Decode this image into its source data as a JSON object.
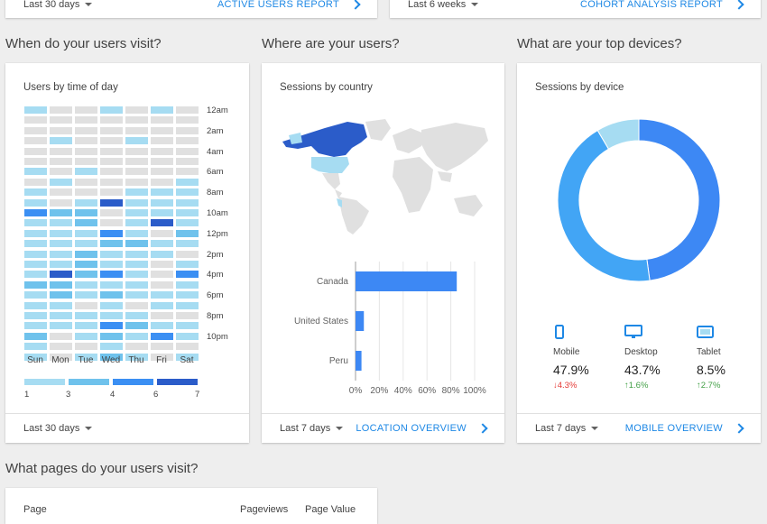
{
  "top_cards": [
    {
      "range": "Last 30 days",
      "link": "ACTIVE USERS REPORT"
    },
    {
      "range": "Last 6 weeks",
      "link": "COHORT ANALYSIS REPORT"
    }
  ],
  "sections": {
    "visit": "When do your users visit?",
    "where": "Where are your users?",
    "devices": "What are your top devices?",
    "pages": "What pages do your users visit?"
  },
  "heatmap_card": {
    "title": "Users by time of day",
    "range": "Last 30 days",
    "days": [
      "Sun",
      "Mon",
      "Tue",
      "Wed",
      "Thu",
      "Fri",
      "Sat"
    ],
    "time_labels": [
      "12am",
      "2am",
      "4am",
      "6am",
      "8am",
      "10am",
      "12pm",
      "2pm",
      "4pm",
      "6pm",
      "8pm",
      "10pm"
    ],
    "legend": [
      "1",
      "3",
      "4",
      "6",
      "7"
    ],
    "colors": [
      "#e0e0e0",
      "#a6dcf2",
      "#6fc2ec",
      "#3b8ff3",
      "#2b5cc9"
    ],
    "levels": [
      [
        1,
        0,
        0,
        1,
        0,
        1,
        0
      ],
      [
        0,
        0,
        0,
        0,
        0,
        0,
        0
      ],
      [
        0,
        0,
        0,
        0,
        0,
        0,
        0
      ],
      [
        0,
        1,
        0,
        0,
        1,
        0,
        0
      ],
      [
        0,
        0,
        0,
        0,
        0,
        0,
        0
      ],
      [
        0,
        0,
        0,
        0,
        0,
        0,
        0
      ],
      [
        1,
        0,
        1,
        0,
        0,
        0,
        0
      ],
      [
        0,
        1,
        0,
        0,
        0,
        0,
        1
      ],
      [
        1,
        0,
        0,
        0,
        1,
        1,
        1
      ],
      [
        1,
        0,
        1,
        4,
        1,
        1,
        1
      ],
      [
        3,
        2,
        2,
        0,
        1,
        1,
        1
      ],
      [
        1,
        1,
        2,
        0,
        1,
        4,
        1
      ],
      [
        1,
        1,
        1,
        3,
        1,
        0,
        2
      ],
      [
        1,
        1,
        1,
        2,
        2,
        1,
        1
      ],
      [
        1,
        1,
        2,
        1,
        1,
        1,
        0
      ],
      [
        1,
        1,
        2,
        1,
        1,
        0,
        1
      ],
      [
        1,
        4,
        2,
        3,
        1,
        0,
        3
      ],
      [
        2,
        2,
        1,
        1,
        1,
        0,
        1
      ],
      [
        1,
        2,
        1,
        2,
        1,
        1,
        1
      ],
      [
        1,
        1,
        0,
        1,
        0,
        1,
        1
      ],
      [
        1,
        1,
        1,
        1,
        1,
        0,
        0
      ],
      [
        1,
        1,
        1,
        3,
        2,
        1,
        1
      ],
      [
        2,
        0,
        1,
        2,
        1,
        3,
        1
      ],
      [
        1,
        0,
        0,
        1,
        0,
        0,
        0
      ],
      [
        1,
        0,
        1,
        2,
        1,
        0,
        1
      ]
    ]
  },
  "country_card": {
    "title": "Sessions by country",
    "range": "Last 7 days",
    "link": "LOCATION OVERVIEW"
  },
  "chart_data": {
    "type": "bar",
    "orientation": "horizontal",
    "categories": [
      "Canada",
      "United States",
      "Peru"
    ],
    "values": [
      85,
      7,
      5
    ],
    "xlim": [
      0,
      100
    ],
    "ticks": [
      "0%",
      "20%",
      "40%",
      "60%",
      "80%",
      "100%"
    ],
    "color": "#3d88f4"
  },
  "device_card": {
    "title": "Sessions by device",
    "range": "Last 7 days",
    "link": "MOBILE OVERVIEW",
    "donut": [
      {
        "name": "Mobile",
        "value": 47.9,
        "color": "#3d88f4"
      },
      {
        "name": "Desktop",
        "value": 43.7,
        "color": "#42a5f5"
      },
      {
        "name": "Tablet",
        "value": 8.5,
        "color": "#a6dcf2"
      }
    ],
    "devices": [
      {
        "label": "Mobile",
        "value": "47.9%",
        "change": "↓4.3%",
        "icon": "phone-icon"
      },
      {
        "label": "Desktop",
        "value": "43.7%",
        "change": "↑1.6%",
        "icon": "monitor-icon"
      },
      {
        "label": "Tablet",
        "value": "8.5%",
        "change": "↑2.7%",
        "icon": "tablet-icon"
      }
    ]
  },
  "pages_card": {
    "col_page": "Page",
    "col_pageviews": "Pageviews",
    "col_value": "Page Value"
  }
}
